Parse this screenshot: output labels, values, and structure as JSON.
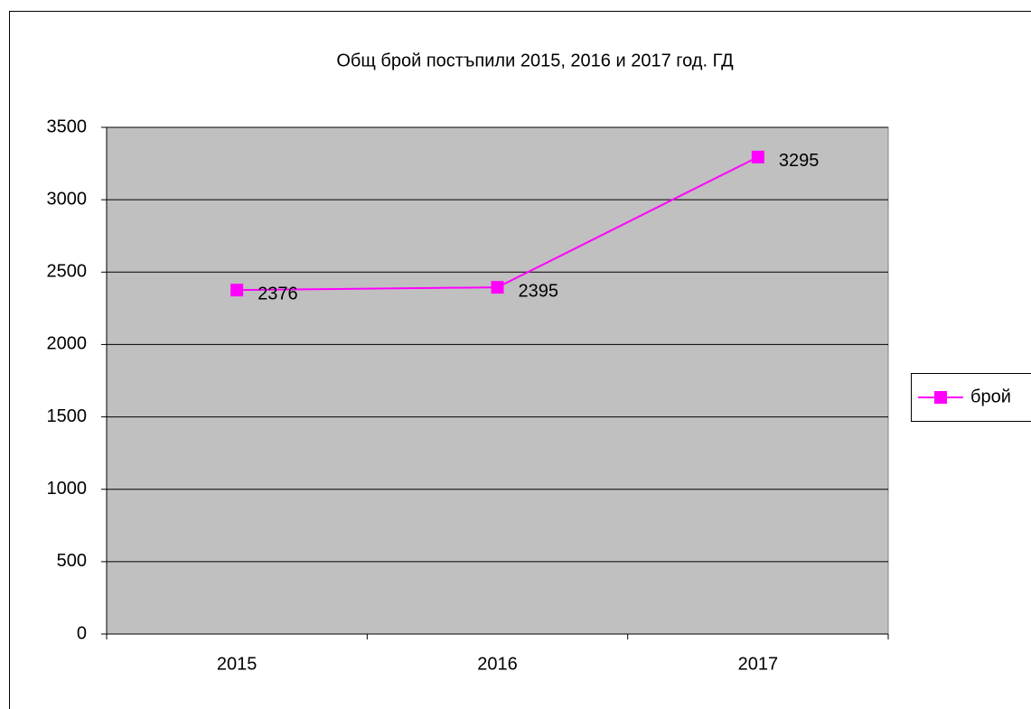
{
  "chart_data": {
    "type": "line",
    "title": "Общ брой постъпили  2015, 2016 и 2017 год. ГД",
    "categories": [
      "2015",
      "2016",
      "2017"
    ],
    "series": [
      {
        "name": "брой",
        "color": "#ff00ff",
        "values": [
          2376,
          2395,
          3295
        ]
      }
    ],
    "ylim": [
      0,
      3500
    ],
    "yticks": [
      0,
      500,
      1000,
      1500,
      2000,
      2500,
      3000,
      3500
    ],
    "grid": true,
    "legend": "right",
    "plot_background": "#c0c0c0"
  }
}
